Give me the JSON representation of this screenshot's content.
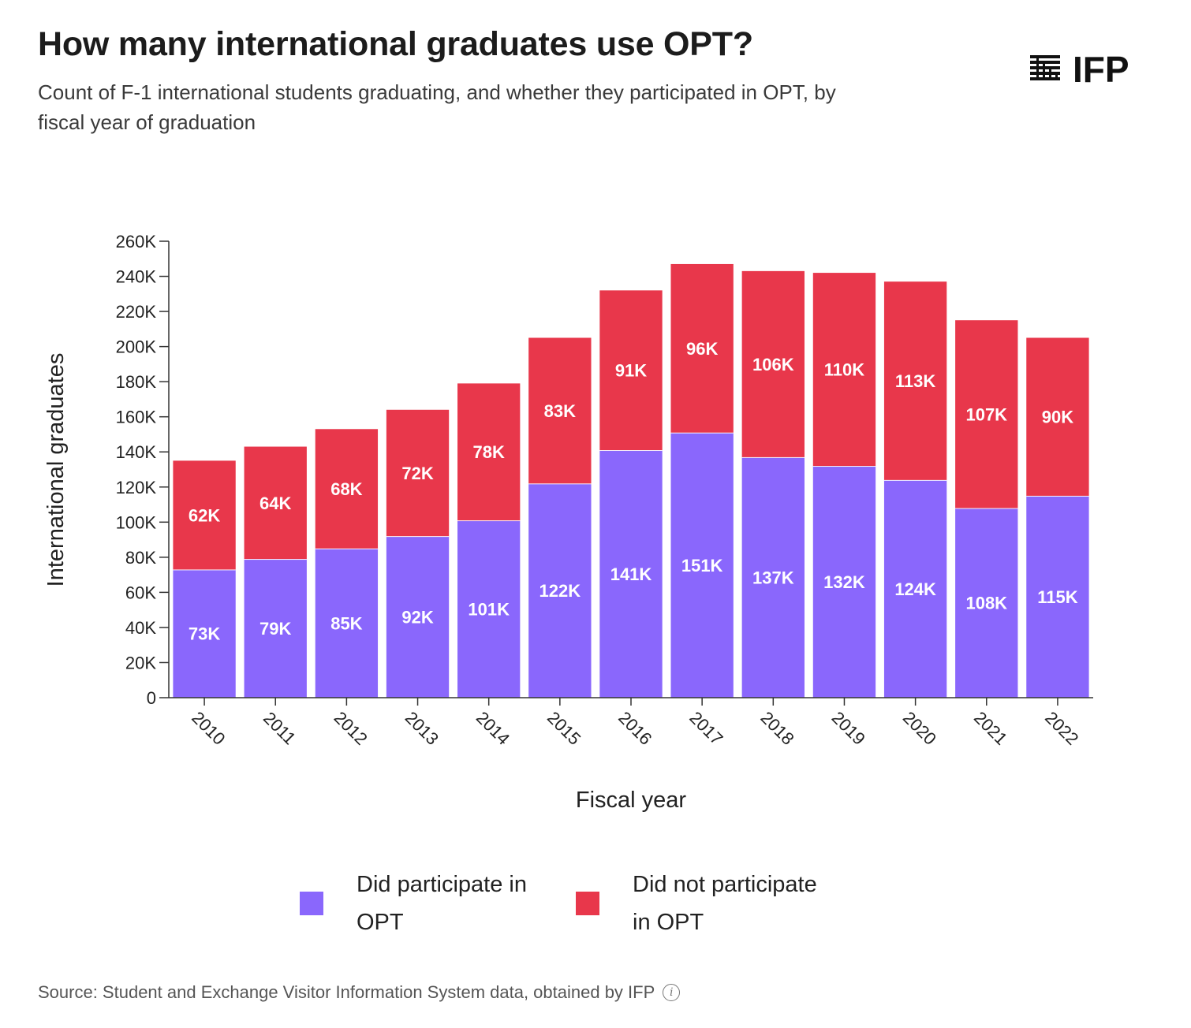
{
  "header": {
    "title": "How many international graduates use OPT?",
    "subtitle": "Count of F-1 international students graduating, and whether they participated in OPT, by fiscal year of graduation"
  },
  "logo": {
    "text": "IFP",
    "icon": "ifp-stripes-logo"
  },
  "footer": {
    "source": "Source: Student and Exchange Visitor Information System data, obtained by IFP",
    "info_icon": "info-icon",
    "info_glyph": "i"
  },
  "colors": {
    "participated": "#8a67fc",
    "not_participated": "#e8374b"
  },
  "chart_data": {
    "type": "bar",
    "stacked": true,
    "xlabel": "Fiscal year",
    "ylabel": "International graduates",
    "ylim": [
      0,
      260000
    ],
    "yticks": [
      0,
      20000,
      40000,
      60000,
      80000,
      100000,
      120000,
      140000,
      160000,
      180000,
      200000,
      220000,
      240000,
      260000
    ],
    "ytick_labels": [
      "0",
      "20K",
      "40K",
      "60K",
      "80K",
      "100K",
      "120K",
      "140K",
      "160K",
      "180K",
      "200K",
      "220K",
      "240K",
      "260K"
    ],
    "categories": [
      "2010",
      "2011",
      "2012",
      "2013",
      "2014",
      "2015",
      "2016",
      "2017",
      "2018",
      "2019",
      "2020",
      "2021",
      "2022"
    ],
    "series": [
      {
        "name": "Did participate in OPT",
        "color": "#8a67fc",
        "values": [
          73000,
          79000,
          85000,
          92000,
          101000,
          122000,
          141000,
          151000,
          137000,
          132000,
          124000,
          108000,
          115000
        ],
        "labels": [
          "73K",
          "79K",
          "85K",
          "92K",
          "101K",
          "122K",
          "141K",
          "151K",
          "137K",
          "132K",
          "124K",
          "108K",
          "115K"
        ]
      },
      {
        "name": "Did not participate in OPT",
        "color": "#e8374b",
        "values": [
          62000,
          64000,
          68000,
          72000,
          78000,
          83000,
          91000,
          96000,
          106000,
          110000,
          113000,
          107000,
          90000
        ],
        "labels": [
          "62K",
          "64K",
          "68K",
          "72K",
          "78K",
          "83K",
          "91K",
          "96K",
          "106K",
          "110K",
          "113K",
          "107K",
          "90K"
        ]
      }
    ],
    "legend": [
      {
        "label": "Did participate in OPT",
        "color": "#8a67fc"
      },
      {
        "label": "Did not participate in OPT",
        "color": "#e8374b"
      }
    ],
    "legend_position": "bottom",
    "grid": false
  }
}
